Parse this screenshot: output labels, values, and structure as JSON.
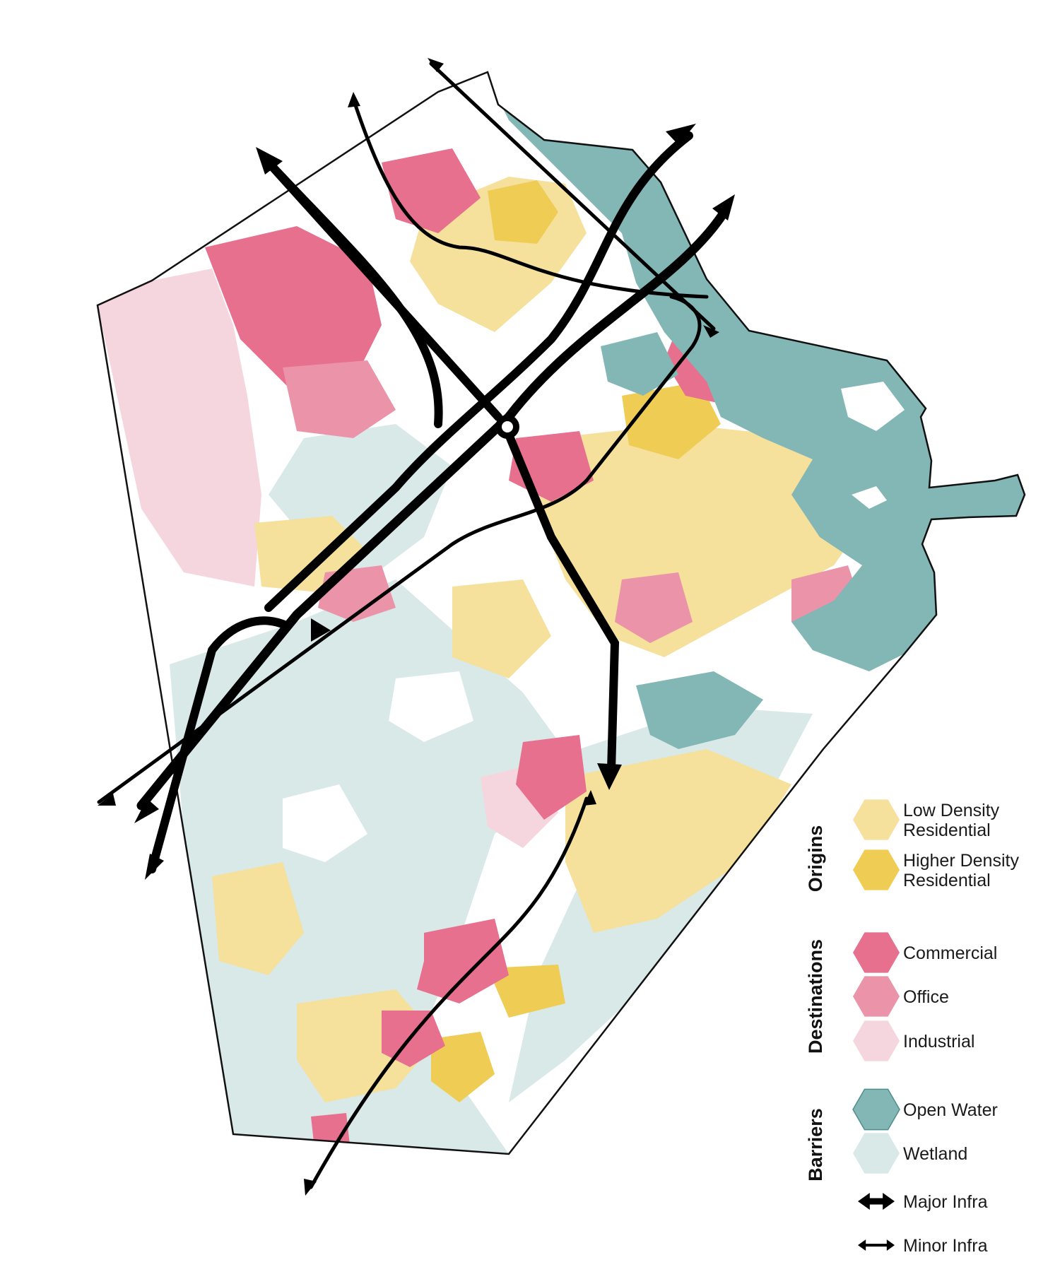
{
  "colors": {
    "low_density": "#f5e09c",
    "higher_density": "#efcd55",
    "commercial": "#e8708f",
    "office": "#eb93a9",
    "industrial": "#f6d6de",
    "open_water": "#82b7b6",
    "wetland": "#d8e9e8",
    "outline": "#111111",
    "infra": "#000000"
  },
  "legend": {
    "groups": [
      {
        "title": "Origins",
        "items": [
          {
            "key": "low_density",
            "label": "Low Density Residential",
            "lines": [
              "Low Density",
              "Residential"
            ]
          },
          {
            "key": "higher_density",
            "label": "Higher Density Residential",
            "lines": [
              "Higher Density",
              "Residential"
            ]
          }
        ]
      },
      {
        "title": "Destinations",
        "items": [
          {
            "key": "commercial",
            "label": "Commercial",
            "lines": [
              "Commercial"
            ]
          },
          {
            "key": "office",
            "label": "Office",
            "lines": [
              "Office"
            ]
          },
          {
            "key": "industrial",
            "label": "Industrial",
            "lines": [
              "Industrial"
            ]
          }
        ]
      },
      {
        "title": "Barriers",
        "items": [
          {
            "key": "open_water",
            "label": "Open Water",
            "lines": [
              "Open Water"
            ]
          },
          {
            "key": "wetland",
            "label": "Wetland",
            "lines": [
              "Wetland"
            ]
          },
          {
            "key": "major_infra",
            "label": "Major Infra",
            "lines": [
              "Major Infra"
            ]
          },
          {
            "key": "minor_infra",
            "label": "Minor Infra",
            "lines": [
              "Minor Infra"
            ]
          }
        ]
      }
    ]
  }
}
